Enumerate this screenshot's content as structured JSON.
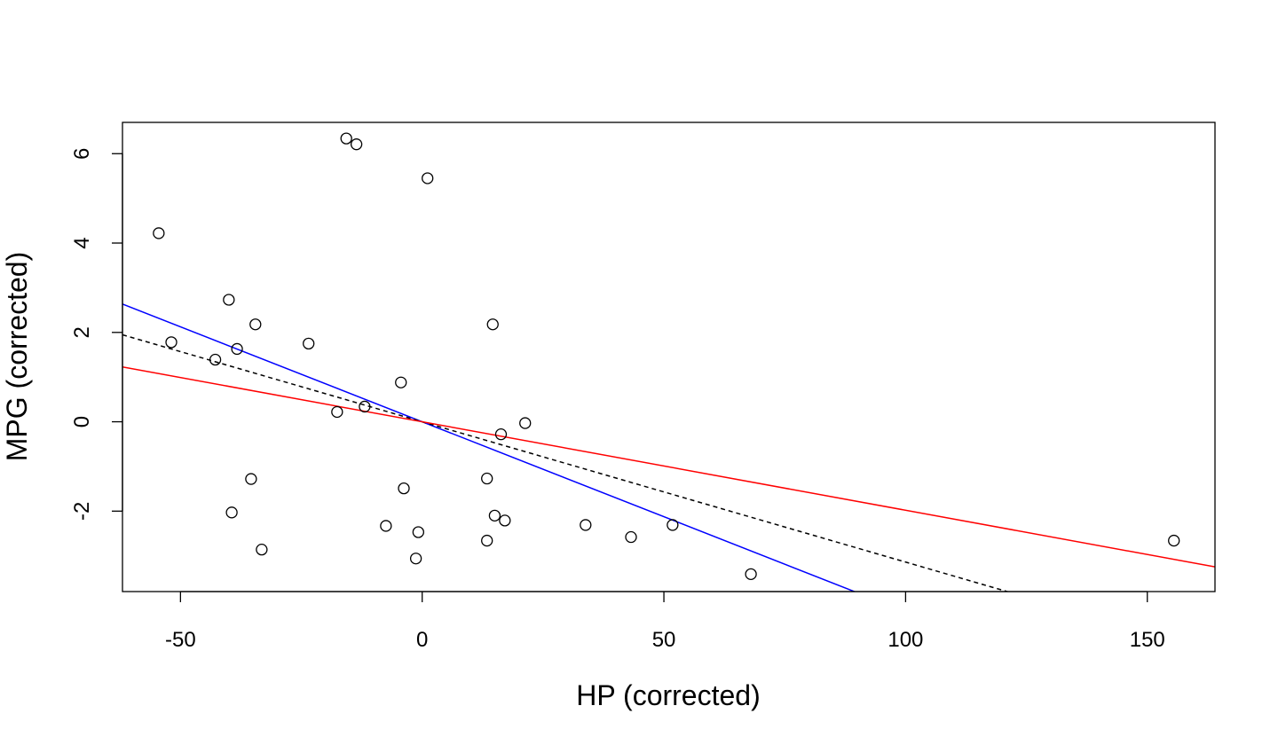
{
  "chart_data": {
    "type": "scatter",
    "title": "",
    "xlabel": "HP (corrected)",
    "ylabel": "MPG (corrected)",
    "xlim": [
      -62,
      164
    ],
    "ylim": [
      -3.8,
      6.7
    ],
    "x_ticks": [
      -50,
      0,
      50,
      100,
      150
    ],
    "y_ticks": [
      -2,
      0,
      2,
      4,
      6
    ],
    "grid": false,
    "legend": "none",
    "points": [
      {
        "x": -54.5,
        "y": 4.22
      },
      {
        "x": -51.9,
        "y": 1.78
      },
      {
        "x": -42.8,
        "y": 1.39
      },
      {
        "x": -40.0,
        "y": 2.73
      },
      {
        "x": -39.4,
        "y": -2.03
      },
      {
        "x": -38.3,
        "y": 1.63
      },
      {
        "x": -35.4,
        "y": -1.28
      },
      {
        "x": -34.5,
        "y": 2.18
      },
      {
        "x": -33.2,
        "y": -2.86
      },
      {
        "x": -23.5,
        "y": 1.75
      },
      {
        "x": -17.6,
        "y": 0.22
      },
      {
        "x": -15.7,
        "y": 6.34
      },
      {
        "x": -13.6,
        "y": 6.21
      },
      {
        "x": -11.9,
        "y": 0.34
      },
      {
        "x": -7.5,
        "y": -2.33
      },
      {
        "x": -4.4,
        "y": 0.88
      },
      {
        "x": -3.8,
        "y": -1.49
      },
      {
        "x": -0.8,
        "y": -2.47
      },
      {
        "x": -1.3,
        "y": -3.06
      },
      {
        "x": 1.1,
        "y": 5.45
      },
      {
        "x": 13.4,
        "y": -1.27
      },
      {
        "x": 13.4,
        "y": -2.66
      },
      {
        "x": 14.6,
        "y": 2.18
      },
      {
        "x": 15.0,
        "y": -2.1
      },
      {
        "x": 16.3,
        "y": -0.28
      },
      {
        "x": 17.1,
        "y": -2.21
      },
      {
        "x": 21.3,
        "y": -0.03
      },
      {
        "x": 33.8,
        "y": -2.31
      },
      {
        "x": 43.2,
        "y": -2.58
      },
      {
        "x": 51.8,
        "y": -2.31
      },
      {
        "x": 68.0,
        "y": -3.41
      },
      {
        "x": 155.5,
        "y": -2.66
      }
    ],
    "lines": [
      {
        "color": "#0000ff",
        "style": "solid",
        "intercept": 0.0,
        "slope": -0.0425
      },
      {
        "color": "#000000",
        "style": "dashed",
        "intercept": 0.0,
        "slope": -0.0314
      },
      {
        "color": "#ff0000",
        "style": "solid",
        "intercept": 0.0,
        "slope": -0.0198
      }
    ],
    "colors": {
      "points": "#000000",
      "frame": "#000000"
    }
  }
}
